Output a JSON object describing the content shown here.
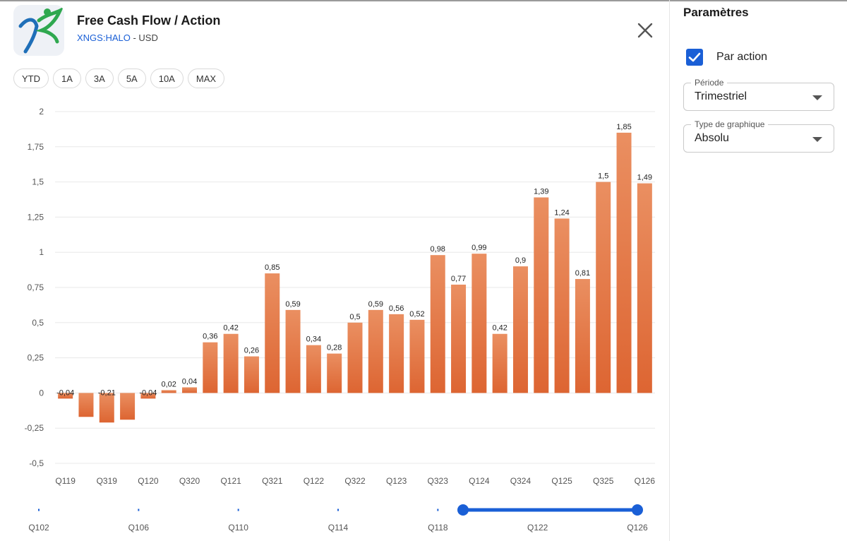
{
  "header": {
    "title": "Free Cash Flow / Action",
    "ticker": "XNGS:HALO",
    "separator": " - ",
    "currency": "USD"
  },
  "icons": {
    "logo": "company-logo",
    "close": "close-icon",
    "checkbox": "checkmark-icon",
    "dropdown": "caret-down-icon"
  },
  "range_buttons": [
    "YTD",
    "1A",
    "3A",
    "5A",
    "10A",
    "MAX"
  ],
  "params": {
    "title": "Paramètres",
    "per_share_label": "Par action",
    "per_share_checked": true,
    "period_label": "Période",
    "period_value": "Trimestriel",
    "chart_type_label": "Type de graphique",
    "chart_type_value": "Absolu"
  },
  "colors": {
    "bar_top": "#ea8f61",
    "bar_bottom": "#dd6532",
    "accent": "#1a5fd6",
    "grid": "#e8e8e8"
  },
  "chart_data": {
    "type": "bar",
    "title": "",
    "xlabel": "",
    "ylabel": "",
    "ylim": [
      -0.5,
      2
    ],
    "y_ticks": [
      2,
      1.75,
      1.5,
      1.25,
      1,
      0.75,
      0.5,
      0.25,
      0,
      -0.25,
      -0.5
    ],
    "y_tick_labels": [
      "2",
      "1,75",
      "1,5",
      "1,25",
      "1",
      "0,75",
      "0,5",
      "0,25",
      "0",
      "-0,25",
      "-0,5"
    ],
    "grid": true,
    "categories": [
      "Q119",
      "Q219",
      "Q319",
      "Q419",
      "Q120",
      "Q220",
      "Q320",
      "Q420",
      "Q121",
      "Q221",
      "Q321",
      "Q421",
      "Q122",
      "Q222",
      "Q322",
      "Q422",
      "Q123",
      "Q223",
      "Q323",
      "Q423",
      "Q124",
      "Q224",
      "Q324",
      "Q424",
      "Q125",
      "Q225",
      "Q325",
      "Q425",
      "Q126"
    ],
    "tick_labels": [
      "Q119",
      "",
      "Q319",
      "",
      "Q120",
      "",
      "Q320",
      "",
      "Q121",
      "",
      "Q321",
      "",
      "Q122",
      "",
      "Q322",
      "",
      "Q123",
      "",
      "Q323",
      "",
      "Q124",
      "",
      "Q324",
      "",
      "Q125",
      "",
      "Q325",
      "",
      "Q126"
    ],
    "values": [
      -0.04,
      -0.17,
      -0.21,
      -0.19,
      -0.04,
      0.02,
      0.04,
      0.36,
      0.42,
      0.26,
      0.85,
      0.59,
      0.34,
      0.28,
      0.5,
      0.59,
      0.56,
      0.52,
      0.98,
      0.77,
      0.99,
      0.42,
      0.9,
      1.39,
      1.24,
      0.81,
      1.5,
      1.85,
      1.49
    ],
    "value_labels": [
      "-0,04",
      "",
      "-0,21",
      "",
      "-0,04",
      "0,02",
      "0,04",
      "0,36",
      "0,42",
      "0,26",
      "0,85",
      "0,59",
      "0,34",
      "0,28",
      "0,5",
      "0,59",
      "0,56",
      "0,52",
      "0,98",
      "0,77",
      "0,99",
      "0,42",
      "0,9",
      "1,39",
      "1,24",
      "0,81",
      "1,5",
      "1,85",
      "1,49"
    ]
  },
  "range_slider": {
    "labels": [
      "Q102",
      "Q106",
      "Q110",
      "Q114",
      "Q118",
      "Q122",
      "Q126"
    ],
    "selected_start": "Q419",
    "selected_end": "Q126"
  }
}
